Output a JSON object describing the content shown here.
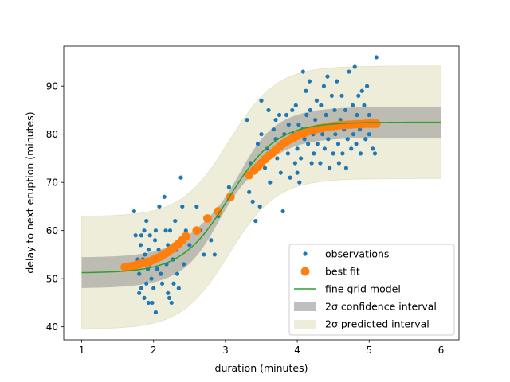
{
  "chart_data": {
    "type": "scatter",
    "title": "",
    "xlabel": "duration (minutes)",
    "ylabel": "delay to next eruption (minutes)",
    "xlim": [
      0.75,
      6.25
    ],
    "ylim": [
      37.3,
      98.3
    ],
    "xticks": [
      1,
      2,
      3,
      4,
      5,
      6
    ],
    "yticks": [
      40,
      50,
      60,
      70,
      80,
      90
    ],
    "grid": false,
    "legend": {
      "placement": "lower-right",
      "entries": [
        {
          "key": "observations",
          "label": "observations",
          "kind": "point",
          "color": "#1f77b4"
        },
        {
          "key": "best_fit",
          "label": "best fit",
          "kind": "big-point",
          "color": "#ff7f0e"
        },
        {
          "key": "fine_grid",
          "label": "fine grid model",
          "kind": "line",
          "color": "#2ca02c"
        },
        {
          "key": "conf",
          "label": "2σ confidence interval",
          "kind": "patch",
          "color": "#808080"
        },
        {
          "key": "pred",
          "label": "2σ predicted interval",
          "kind": "patch",
          "color": "#bdb76b"
        }
      ]
    },
    "model": {
      "type": "logistic",
      "lower": 51.2,
      "upper": 82.5,
      "center": 3.05,
      "scale": 0.33,
      "x_range": [
        1.0,
        6.0
      ],
      "fit_x_range": [
        1.6,
        5.1
      ],
      "confidence_halfwidth": {
        "ends": 3.2,
        "middle": 1.3
      },
      "prediction_halfwidth": 11.7
    },
    "series": [
      {
        "name": "observations",
        "color": "#1f77b4",
        "points": [
          [
            1.73,
            64
          ],
          [
            1.75,
            59
          ],
          [
            1.78,
            54
          ],
          [
            1.8,
            47
          ],
          [
            1.8,
            51
          ],
          [
            1.82,
            57
          ],
          [
            1.83,
            59
          ],
          [
            1.83,
            48
          ],
          [
            1.85,
            54
          ],
          [
            1.87,
            60
          ],
          [
            1.87,
            46
          ],
          [
            1.88,
            55
          ],
          [
            1.9,
            62
          ],
          [
            1.9,
            49
          ],
          [
            1.92,
            52
          ],
          [
            1.93,
            45
          ],
          [
            1.93,
            56
          ],
          [
            1.95,
            53
          ],
          [
            1.95,
            59
          ],
          [
            1.97,
            50
          ],
          [
            1.98,
            45
          ],
          [
            2.0,
            54
          ],
          [
            2.0,
            48
          ],
          [
            2.02,
            58
          ],
          [
            2.03,
            43
          ],
          [
            2.03,
            60
          ],
          [
            2.05,
            52
          ],
          [
            2.07,
            56
          ],
          [
            2.08,
            65
          ],
          [
            2.1,
            51
          ],
          [
            2.12,
            49
          ],
          [
            2.13,
            55
          ],
          [
            2.15,
            67
          ],
          [
            2.17,
            60
          ],
          [
            2.18,
            53
          ],
          [
            2.2,
            47
          ],
          [
            2.2,
            57
          ],
          [
            2.22,
            46
          ],
          [
            2.23,
            60
          ],
          [
            2.25,
            45
          ],
          [
            2.27,
            54
          ],
          [
            2.28,
            49
          ],
          [
            2.3,
            62
          ],
          [
            2.32,
            56
          ],
          [
            2.33,
            51
          ],
          [
            2.35,
            48
          ],
          [
            2.37,
            58
          ],
          [
            2.38,
            71
          ],
          [
            2.4,
            65
          ],
          [
            2.42,
            53
          ],
          [
            2.45,
            60
          ],
          [
            2.5,
            57
          ],
          [
            2.6,
            65
          ],
          [
            2.65,
            60
          ],
          [
            2.7,
            55
          ],
          [
            2.8,
            58
          ],
          [
            2.85,
            55
          ],
          [
            2.9,
            63
          ],
          [
            3.05,
            69
          ],
          [
            3.3,
            83
          ],
          [
            3.33,
            68
          ],
          [
            3.35,
            74
          ],
          [
            3.38,
            66
          ],
          [
            3.4,
            72
          ],
          [
            3.42,
            62
          ],
          [
            3.45,
            78
          ],
          [
            3.48,
            65
          ],
          [
            3.5,
            80
          ],
          [
            3.5,
            87
          ],
          [
            3.55,
            73
          ],
          [
            3.58,
            77
          ],
          [
            3.6,
            85
          ],
          [
            3.62,
            70
          ],
          [
            3.65,
            76
          ],
          [
            3.67,
            81
          ],
          [
            3.7,
            79
          ],
          [
            3.7,
            83
          ],
          [
            3.72,
            75
          ],
          [
            3.75,
            84
          ],
          [
            3.77,
            72
          ],
          [
            3.8,
            64
          ],
          [
            3.82,
            80
          ],
          [
            3.83,
            78
          ],
          [
            3.85,
            84
          ],
          [
            3.87,
            76
          ],
          [
            3.88,
            82
          ],
          [
            3.9,
            71
          ],
          [
            3.92,
            79
          ],
          [
            3.93,
            85
          ],
          [
            3.95,
            80
          ],
          [
            3.97,
            74
          ],
          [
            3.98,
            86
          ],
          [
            4.0,
            72
          ],
          [
            4.0,
            77
          ],
          [
            4.02,
            82
          ],
          [
            4.03,
            70
          ],
          [
            4.05,
            75
          ],
          [
            4.07,
            81
          ],
          [
            4.08,
            93
          ],
          [
            4.1,
            79
          ],
          [
            4.12,
            89
          ],
          [
            4.13,
            84
          ],
          [
            4.15,
            78
          ],
          [
            4.17,
            91
          ],
          [
            4.18,
            85
          ],
          [
            4.2,
            74
          ],
          [
            4.22,
            80
          ],
          [
            4.23,
            76
          ],
          [
            4.25,
            83
          ],
          [
            4.27,
            87
          ],
          [
            4.28,
            78
          ],
          [
            4.3,
            81
          ],
          [
            4.32,
            74
          ],
          [
            4.33,
            86
          ],
          [
            4.35,
            80
          ],
          [
            4.37,
            90
          ],
          [
            4.38,
            77
          ],
          [
            4.4,
            84
          ],
          [
            4.42,
            92
          ],
          [
            4.43,
            79
          ],
          [
            4.45,
            73
          ],
          [
            4.47,
            82
          ],
          [
            4.48,
            88
          ],
          [
            4.5,
            76
          ],
          [
            4.52,
            85
          ],
          [
            4.53,
            80
          ],
          [
            4.55,
            91
          ],
          [
            4.57,
            78
          ],
          [
            4.58,
            74
          ],
          [
            4.6,
            83
          ],
          [
            4.62,
            88
          ],
          [
            4.63,
            76
          ],
          [
            4.65,
            81
          ],
          [
            4.67,
            85
          ],
          [
            4.68,
            73
          ],
          [
            4.7,
            79
          ],
          [
            4.72,
            93
          ],
          [
            4.73,
            82
          ],
          [
            4.75,
            77
          ],
          [
            4.77,
            86
          ],
          [
            4.78,
            80
          ],
          [
            4.8,
            94
          ],
          [
            4.82,
            78
          ],
          [
            4.83,
            84
          ],
          [
            4.85,
            88
          ],
          [
            4.87,
            81
          ],
          [
            4.88,
            76
          ],
          [
            4.9,
            89
          ],
          [
            4.92,
            82
          ],
          [
            4.93,
            86
          ],
          [
            4.95,
            79
          ],
          [
            4.97,
            90
          ],
          [
            5.0,
            84
          ],
          [
            5.0,
            80
          ],
          [
            5.05,
            77
          ],
          [
            5.08,
            76
          ],
          [
            5.1,
            96
          ]
        ]
      },
      {
        "name": "best fit",
        "color": "#ff7f0e",
        "points": [
          [
            1.6,
            52.4
          ],
          [
            1.65,
            52.5
          ],
          [
            1.7,
            52.6
          ],
          [
            1.75,
            52.8
          ],
          [
            1.8,
            53.0
          ],
          [
            1.85,
            53.2
          ],
          [
            1.9,
            53.4
          ],
          [
            1.95,
            53.6
          ],
          [
            2.0,
            53.9
          ],
          [
            2.05,
            54.3
          ],
          [
            2.1,
            54.6
          ],
          [
            2.15,
            55.1
          ],
          [
            2.2,
            55.5
          ],
          [
            2.25,
            56.1
          ],
          [
            2.3,
            56.7
          ],
          [
            2.35,
            57.3
          ],
          [
            2.4,
            58.0
          ],
          [
            2.45,
            58.8
          ],
          [
            2.6,
            60.0
          ],
          [
            2.75,
            62.5
          ],
          [
            2.9,
            64.0
          ],
          [
            3.07,
            67.0
          ],
          [
            3.33,
            71.5
          ],
          [
            3.4,
            72.5
          ],
          [
            3.45,
            73.2
          ],
          [
            3.5,
            74.0
          ],
          [
            3.55,
            74.8
          ],
          [
            3.6,
            75.5
          ],
          [
            3.65,
            76.1
          ],
          [
            3.7,
            76.8
          ],
          [
            3.75,
            77.4
          ],
          [
            3.8,
            78.0
          ],
          [
            3.85,
            78.5
          ],
          [
            3.9,
            78.9
          ],
          [
            3.95,
            79.3
          ],
          [
            4.0,
            79.7
          ],
          [
            4.05,
            80.0
          ],
          [
            4.1,
            80.3
          ],
          [
            4.15,
            80.6
          ],
          [
            4.2,
            80.8
          ],
          [
            4.25,
            81.0
          ],
          [
            4.3,
            81.2
          ],
          [
            4.35,
            81.3
          ],
          [
            4.4,
            81.5
          ],
          [
            4.45,
            81.6
          ],
          [
            4.5,
            81.7
          ],
          [
            4.55,
            81.8
          ],
          [
            4.6,
            81.9
          ],
          [
            4.65,
            81.9
          ],
          [
            4.7,
            82.0
          ],
          [
            4.75,
            82.0
          ],
          [
            4.8,
            82.1
          ],
          [
            4.85,
            82.1
          ],
          [
            4.9,
            82.1
          ],
          [
            4.95,
            82.2
          ],
          [
            5.0,
            82.2
          ],
          [
            5.05,
            82.2
          ],
          [
            5.1,
            82.2
          ]
        ]
      }
    ]
  }
}
